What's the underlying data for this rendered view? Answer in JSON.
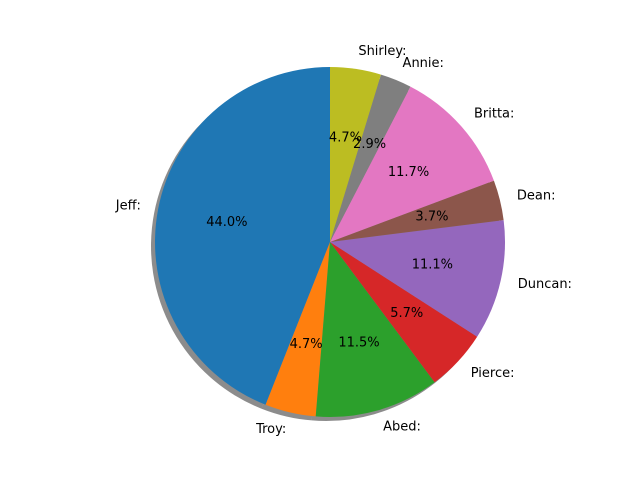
{
  "chart_data": {
    "type": "pie",
    "title": "",
    "start_angle_deg": 90,
    "direction": "counterclockwise",
    "shadow": true,
    "slices": [
      {
        "label": "Jeff:",
        "value": 44.0,
        "pct_label": "44.0%",
        "color": "#1f77b4"
      },
      {
        "label": "Troy:",
        "value": 4.7,
        "pct_label": "4.7%",
        "color": "#ff7f0e"
      },
      {
        "label": "Abed:",
        "value": 11.5,
        "pct_label": "11.5%",
        "color": "#2ca02c"
      },
      {
        "label": "Pierce:",
        "value": 5.7,
        "pct_label": "5.7%",
        "color": "#d62728"
      },
      {
        "label": "Duncan:",
        "value": 11.1,
        "pct_label": "11.1%",
        "color": "#9467bd"
      },
      {
        "label": "Dean:",
        "value": 3.7,
        "pct_label": "3.7%",
        "color": "#8c564b"
      },
      {
        "label": "Britta:",
        "value": 11.7,
        "pct_label": "11.7%",
        "color": "#e377c2"
      },
      {
        "label": "Annie:",
        "value": 2.9,
        "pct_label": "2.9%",
        "color": "#7f7f7f"
      },
      {
        "label": "Shirley:",
        "value": 4.7,
        "pct_label": "4.7%",
        "color": "#bcbd22"
      }
    ]
  }
}
